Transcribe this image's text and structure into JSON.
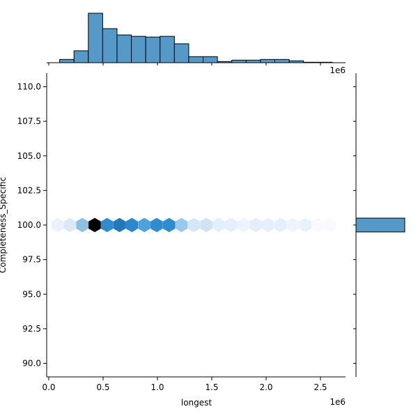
{
  "chart_data": {
    "type": "hexbin-jointplot",
    "xlabel": "longest",
    "ylabel": "Completeness_Specific",
    "x_offset_label": "1e6",
    "top_offset_label": "1e6",
    "xlim": [
      -0.01,
      2.73
    ],
    "ylim": [
      89.1,
      111.0
    ],
    "xticks": [
      {
        "v": 0.0,
        "l": "0.0"
      },
      {
        "v": 0.5,
        "l": "0.5"
      },
      {
        "v": 1.0,
        "l": "1.0"
      },
      {
        "v": 1.5,
        "l": "1.5"
      },
      {
        "v": 2.0,
        "l": "2.0"
      },
      {
        "v": 2.5,
        "l": "2.5"
      }
    ],
    "yticks": [
      {
        "v": 90,
        "l": "90.0"
      },
      {
        "v": 92.5,
        "l": "92.5"
      },
      {
        "v": 95,
        "l": "95.0"
      },
      {
        "v": 97.5,
        "l": "97.5"
      },
      {
        "v": 100,
        "l": "100.0"
      },
      {
        "v": 102.5,
        "l": "102.5"
      },
      {
        "v": 105,
        "l": "105.0"
      },
      {
        "v": 107.5,
        "l": "107.5"
      },
      {
        "v": 110,
        "l": "110.0"
      }
    ],
    "hex_y": 100,
    "hex_x_start": 0.1,
    "hex_x_step": 0.114,
    "hex_colors": [
      "#eaf3fb",
      "#dbe9f6",
      "#8dc1e1",
      "#000000",
      "#2f8ccf",
      "#2479ba",
      "#2a87cc",
      "#4ea2dc",
      "#2f8ccf",
      "#2f8ccf",
      "#99c8eb",
      "#d5e7f6",
      "#cfe3f4",
      "#e3effa",
      "#e3effa",
      "#edf5fc",
      "#e3effa",
      "#e3effa",
      "#e3effa",
      "#edf5fc",
      "#e8f2fb",
      "#f7fbff",
      "#f7fbff"
    ],
    "top_hist": {
      "bin_start": 0.1,
      "bin_width": 0.132,
      "relative_heights": [
        14,
        51,
        212,
        146,
        119,
        113,
        110,
        113,
        81,
        26,
        26,
        5,
        11,
        11,
        14,
        14,
        8,
        2,
        2
      ]
    },
    "right_hist": {
      "y_low": 99.5,
      "y_high": 100.5,
      "relative_width": 1
    },
    "color": "#5499c7"
  }
}
